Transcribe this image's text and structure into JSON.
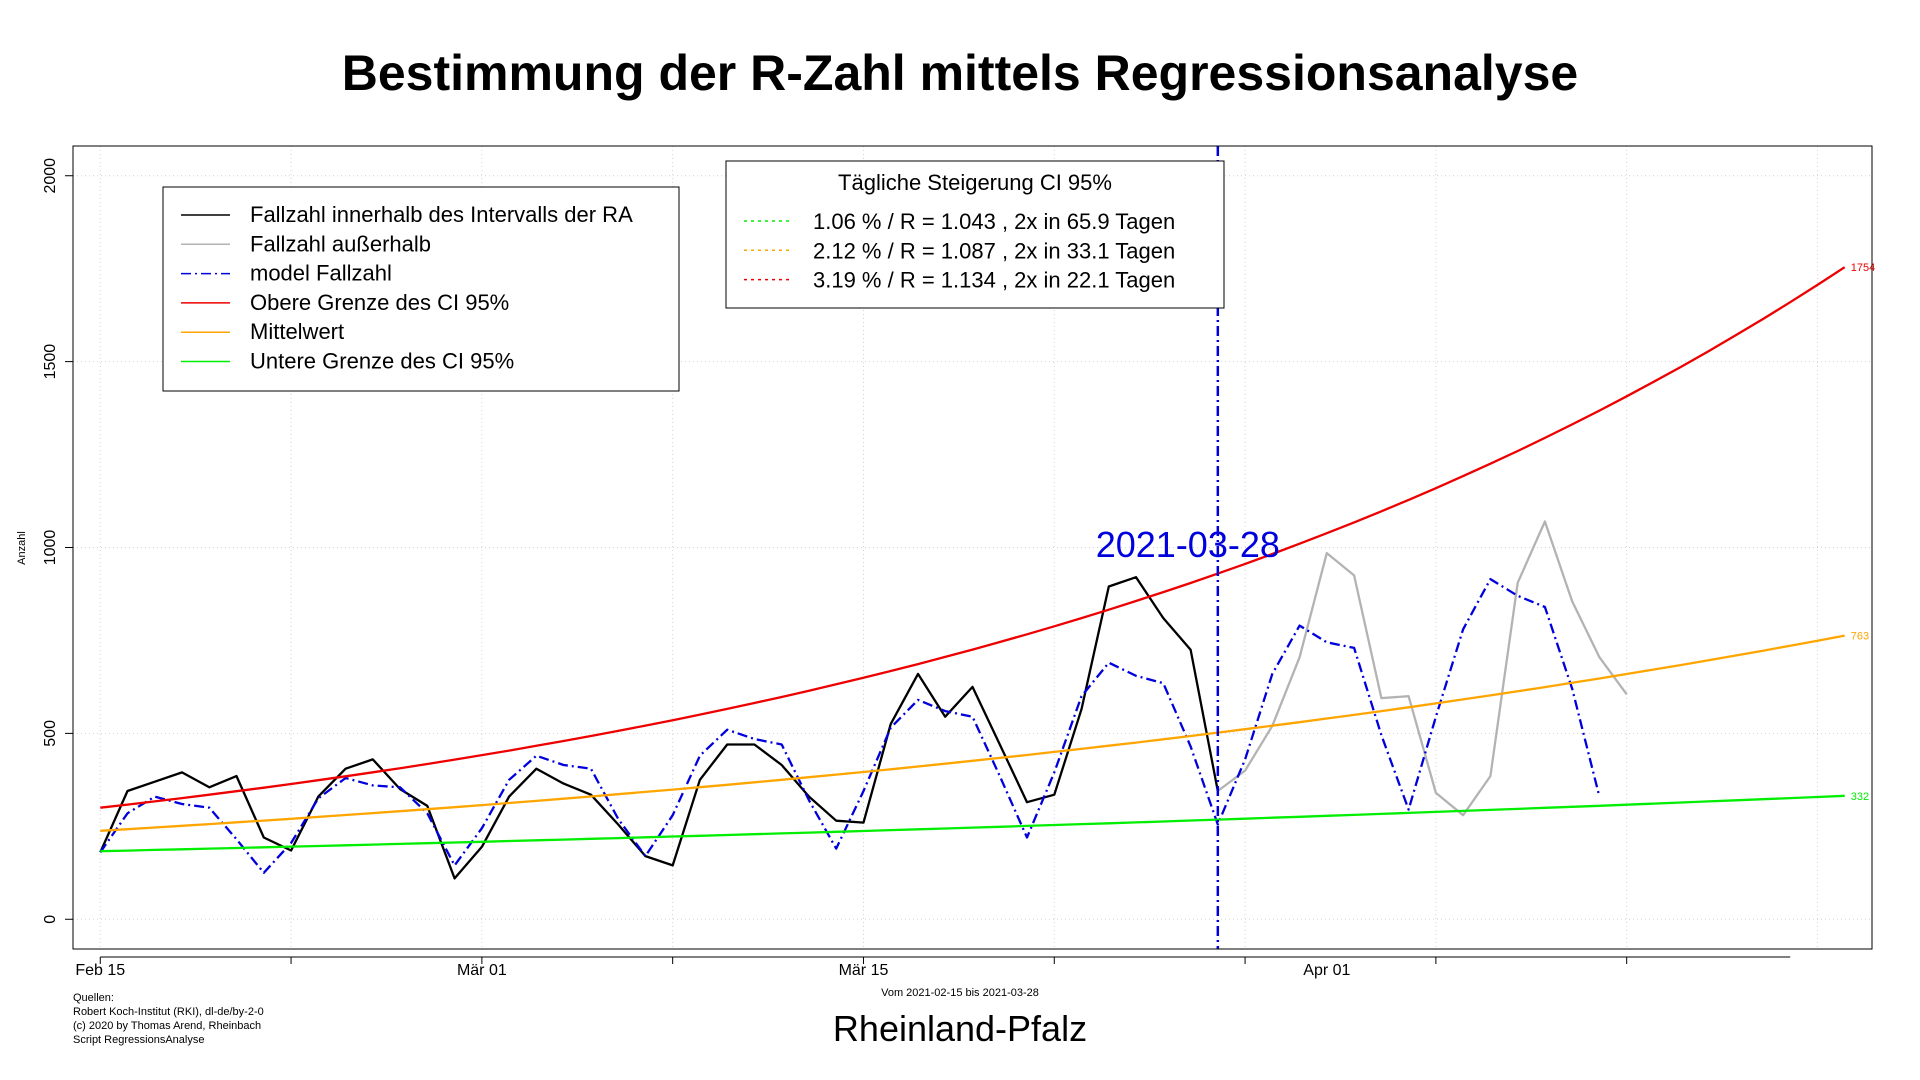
{
  "chart_data": {
    "type": "line",
    "title": "Bestimmung der R-Zahl mittels Regressionsanalyse",
    "ylabel": "Anzahl",
    "xlabel": "",
    "ylim": [
      -80,
      2080
    ],
    "xlim": [
      "2021-02-14",
      "2021-04-21"
    ],
    "y_ticks": [
      0,
      500,
      1000,
      1500,
      2000
    ],
    "x_ticks": [
      {
        "date": "2021-02-15",
        "label": "Feb 15"
      },
      {
        "date": "2021-03-01",
        "label": "Mär 01"
      },
      {
        "date": "2021-03-15",
        "label": "Mär 15"
      },
      {
        "date": "2021-04-01",
        "label": "Apr 01"
      }
    ],
    "grid": true,
    "marker": {
      "date": "2021-03-28",
      "label": "2021-03-28",
      "color": "#0000dd"
    },
    "series": [
      {
        "name": "Fallzahl innerhalb des Intervalls der RA",
        "color": "#000000",
        "dash": "solid",
        "start_date": "2021-02-15",
        "values": [
          180,
          345,
          370,
          395,
          355,
          385,
          220,
          185,
          330,
          405,
          430,
          350,
          305,
          110,
          195,
          330,
          405,
          365,
          335,
          255,
          170,
          145,
          375,
          470,
          470,
          415,
          330,
          265,
          260,
          525,
          660,
          545,
          625,
          470,
          315,
          335,
          565,
          895,
          920,
          810,
          725,
          345
        ]
      },
      {
        "name": "Fallzahl außerhalb",
        "color": "#b3b3b3",
        "dash": "solid",
        "start_date": "2021-03-28",
        "values": [
          345,
          400,
          520,
          705,
          985,
          925,
          595,
          600,
          340,
          280,
          385,
          905,
          1070,
          855,
          705,
          605
        ]
      },
      {
        "name": "model Fallzahl",
        "color": "#0000dd",
        "dash": "dashdot",
        "start_date": "2021-02-15",
        "values": [
          180,
          285,
          330,
          310,
          300,
          215,
          125,
          205,
          325,
          380,
          360,
          355,
          285,
          145,
          245,
          375,
          440,
          415,
          405,
          270,
          170,
          280,
          440,
          510,
          485,
          470,
          320,
          190,
          345,
          515,
          590,
          560,
          545,
          385,
          220,
          395,
          600,
          690,
          655,
          635,
          465,
          255,
          430,
          660,
          790,
          745,
          730,
          495,
          295,
          545,
          780,
          915,
          870,
          840,
          620,
          330
        ]
      },
      {
        "name": "Obere Grenze des CI 95%",
        "color": "#ee0000",
        "dash": "solid",
        "model": "exponential",
        "start_value": 300,
        "end_value": 1754,
        "end_date": "2021-04-20",
        "end_label": "1754"
      },
      {
        "name": "Mittelwert",
        "color": "#ffa500",
        "dash": "solid",
        "model": "exponential",
        "start_value": 238,
        "end_value": 763,
        "end_date": "2021-04-20",
        "end_label": "763"
      },
      {
        "name": "Untere Grenze des CI 95%",
        "color": "#00ee00",
        "dash": "solid",
        "model": "exponential",
        "start_value": 183,
        "end_value": 332,
        "end_date": "2021-04-20",
        "end_label": "332"
      }
    ],
    "legend": {
      "placement": "top-left",
      "entries": [
        {
          "label": "Fallzahl innerhalb des Intervalls der RA",
          "color": "#000000",
          "dash": "solid"
        },
        {
          "label": "Fallzahl außerhalb",
          "color": "#b3b3b3",
          "dash": "solid"
        },
        {
          "label": "model Fallzahl",
          "color": "#0000dd",
          "dash": "dashdot"
        },
        {
          "label": "Obere Grenze des CI 95%",
          "color": "#ee0000",
          "dash": "solid"
        },
        {
          "label": "Mittelwert",
          "color": "#ffa500",
          "dash": "solid"
        },
        {
          "label": "Untere Grenze des CI 95%",
          "color": "#00ee00",
          "dash": "solid"
        }
      ]
    },
    "ci_legend": {
      "placement": "top-center",
      "title": "Tägliche Steigerung CI  95%",
      "entries": [
        {
          "label": "1.06 % / R = 1.043 , 2x in 65.9 Tagen",
          "color": "#00ee00"
        },
        {
          "label": "2.12 % / R = 1.087 , 2x in 33.1 Tagen",
          "color": "#ffa500"
        },
        {
          "label": "3.19 % / R = 1.134 , 2x in 22.1 Tagen",
          "color": "#ee0000"
        }
      ]
    }
  },
  "footer": {
    "sources": [
      "Quellen:",
      "Robert Koch-Institut (RKI), dl-de/by-2-0",
      "(c) 2020 by Thomas Arend, Rheinbach",
      "Script RegressionsAnalyse"
    ],
    "range": "Vom 2021-02-15 bis 2021-03-28",
    "region": "Rheinland-Pfalz"
  }
}
